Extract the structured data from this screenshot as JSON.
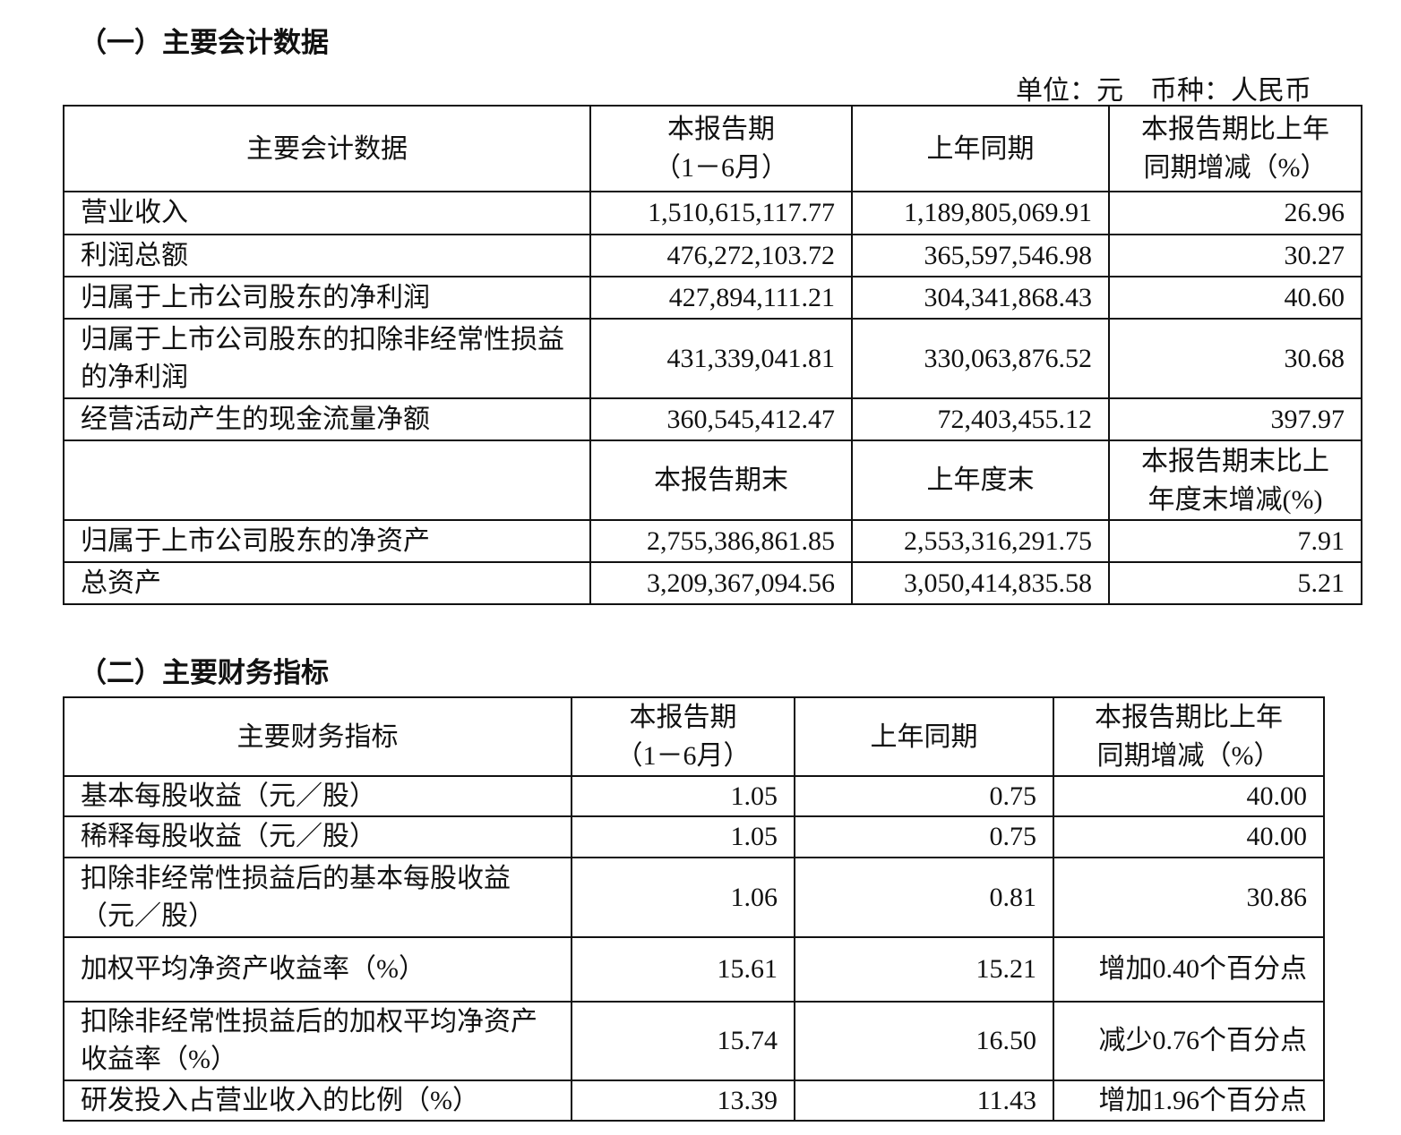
{
  "section1": {
    "title": "（一）主要会计数据",
    "unit": "单位：元　币种：人民币",
    "header": [
      "主要会计数据",
      "本报告期\n（1－6月）",
      "上年同期",
      "本报告期比上年\n同期增减（%）"
    ],
    "rows": [
      {
        "type": "data",
        "cells": [
          "营业收入",
          "1,510,615,117.77",
          "1,189,805,069.91",
          "26.96"
        ]
      },
      {
        "type": "data",
        "cells": [
          "利润总额",
          "476,272,103.72",
          "365,597,546.98",
          "30.27"
        ]
      },
      {
        "type": "data",
        "cells": [
          "归属于上市公司股东的净利润",
          "427,894,111.21",
          "304,341,868.43",
          "40.60"
        ]
      },
      {
        "type": "data",
        "cells": [
          "归属于上市公司股东的扣除非经常性损益的净利润",
          "431,339,041.81",
          "330,063,876.52",
          "30.68"
        ]
      },
      {
        "type": "data",
        "cells": [
          "经营活动产生的现金流量净额",
          "360,545,412.47",
          "72,403,455.12",
          "397.97"
        ]
      },
      {
        "type": "header",
        "cells": [
          "",
          "本报告期末",
          "上年度末",
          "本报告期末比上\n年度末增减(%)"
        ]
      },
      {
        "type": "data",
        "cells": [
          "归属于上市公司股东的净资产",
          "2,755,386,861.85",
          "2,553,316,291.75",
          "7.91"
        ]
      },
      {
        "type": "data",
        "cells": [
          "总资产",
          "3,209,367,094.56",
          "3,050,414,835.58",
          "5.21"
        ]
      }
    ]
  },
  "section2": {
    "title": "（二）主要财务指标",
    "header": [
      "主要财务指标",
      "本报告期\n（1－6月）",
      "上年同期",
      "本报告期比上年\n同期增减（%）"
    ],
    "rows": [
      {
        "type": "data",
        "cells": [
          "基本每股收益（元／股）",
          "1.05",
          "0.75",
          "40.00"
        ]
      },
      {
        "type": "data",
        "cells": [
          "稀释每股收益（元／股）",
          "1.05",
          "0.75",
          "40.00"
        ]
      },
      {
        "type": "data",
        "cells": [
          "扣除非经常性损益后的基本每股收益（元／股）",
          "1.06",
          "0.81",
          "30.86"
        ]
      },
      {
        "type": "data",
        "cells": [
          "加权平均净资产收益率（%）",
          "15.61",
          "15.21",
          "增加0.40个百分点"
        ]
      },
      {
        "type": "data",
        "cells": [
          "扣除非经常性损益后的加权平均净资产收益率（%）",
          "15.74",
          "16.50",
          "减少0.76个百分点"
        ]
      },
      {
        "type": "data",
        "cells": [
          "研发投入占营业收入的比例（%）",
          "13.39",
          "11.43",
          "增加1.96个百分点"
        ]
      }
    ]
  }
}
